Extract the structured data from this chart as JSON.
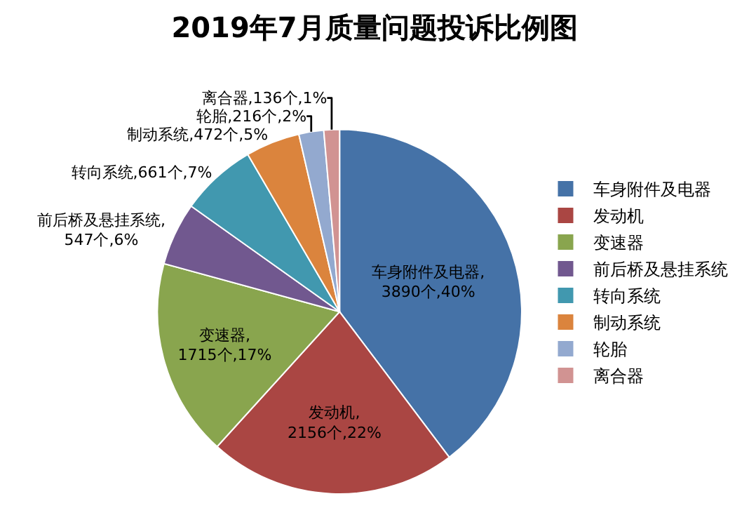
{
  "chart_data": {
    "type": "pie",
    "title": "2019年7月质量问题投诉比例图",
    "categories": [
      "车身附件及电器",
      "发动机",
      "变速器",
      "前后桥及悬挂系统",
      "转向系统",
      "制动系统",
      "轮胎",
      "离合器"
    ],
    "values": [
      3890,
      2156,
      1715,
      547,
      661,
      472,
      216,
      136
    ],
    "colors": [
      "#4572a7",
      "#aa4643",
      "#89a54e",
      "#71588f",
      "#4198af",
      "#db843d",
      "#93a9cf",
      "#d19392"
    ],
    "value_labels": [
      "车身附件及电器,\n3890个,40%",
      "发动机,\n2156个,22%",
      "变速器,\n1715个,17%",
      "前后桥及悬挂系统,\n547个,6%",
      "转向系统,661个,7%",
      "制动系统,472个,5%",
      "轮胎,216个,2%",
      "离合器,136个,1%"
    ],
    "legend": "right"
  }
}
